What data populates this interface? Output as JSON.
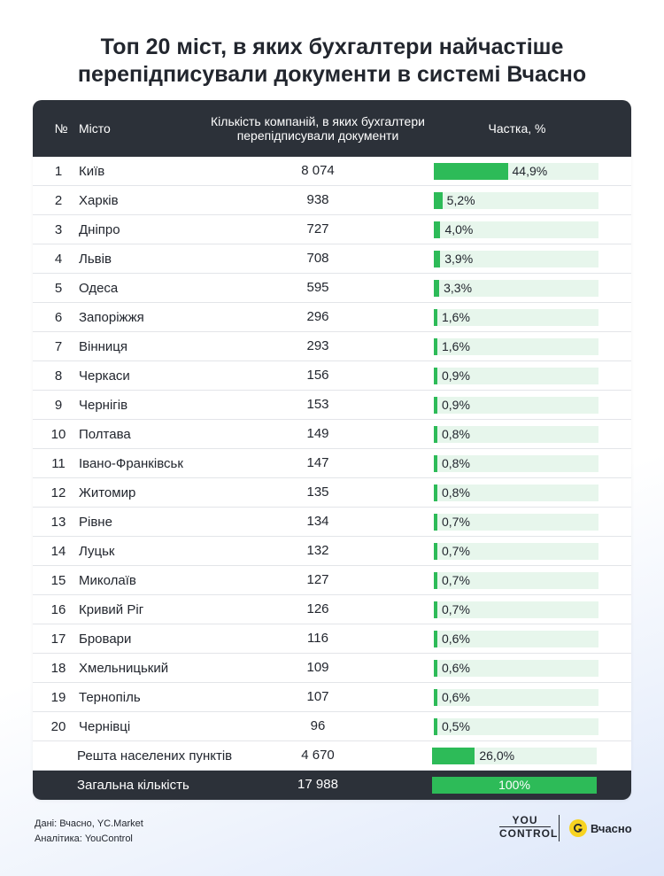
{
  "title": {
    "line1": "Топ 20 міст, в яких бухгалтери найчастіше",
    "line2": "перепідписували документи в системі Вчасно"
  },
  "table": {
    "headers": {
      "num": "№",
      "city": "Місто",
      "count": "Кількість компаній, в яких бухгалтери перепідписували документи",
      "share": "Частка, %"
    }
  },
  "chart_data": {
    "type": "table",
    "title": "Топ 20 міст, в яких бухгалтери найчастіше перепідписували документи в системі Вчасно",
    "columns": [
      "№",
      "Місто",
      "Кількість компаній, в яких бухгалтери перепідписували документи",
      "Частка, %"
    ],
    "rows": [
      {
        "num": "1",
        "city": "Київ",
        "count": "8 074",
        "share": 44.9,
        "share_label": "44,9%"
      },
      {
        "num": "2",
        "city": "Харків",
        "count": "938",
        "share": 5.2,
        "share_label": "5,2%"
      },
      {
        "num": "3",
        "city": "Дніпро",
        "count": "727",
        "share": 4.0,
        "share_label": "4,0%"
      },
      {
        "num": "4",
        "city": "Львів",
        "count": "708",
        "share": 3.9,
        "share_label": "3,9%"
      },
      {
        "num": "5",
        "city": "Одеса",
        "count": "595",
        "share": 3.3,
        "share_label": "3,3%"
      },
      {
        "num": "6",
        "city": "Запоріжжя",
        "count": "296",
        "share": 1.6,
        "share_label": "1,6%"
      },
      {
        "num": "7",
        "city": "Вінниця",
        "count": "293",
        "share": 1.6,
        "share_label": "1,6%"
      },
      {
        "num": "8",
        "city": "Черкаси",
        "count": "156",
        "share": 0.9,
        "share_label": "0,9%"
      },
      {
        "num": "9",
        "city": "Чернігів",
        "count": "153",
        "share": 0.9,
        "share_label": "0,9%"
      },
      {
        "num": "10",
        "city": "Полтава",
        "count": "149",
        "share": 0.8,
        "share_label": "0,8%"
      },
      {
        "num": "11",
        "city": "Івано-Франківськ",
        "count": "147",
        "share": 0.8,
        "share_label": "0,8%"
      },
      {
        "num": "12",
        "city": "Житомир",
        "count": "135",
        "share": 0.8,
        "share_label": "0,8%"
      },
      {
        "num": "13",
        "city": "Рівне",
        "count": "134",
        "share": 0.7,
        "share_label": "0,7%"
      },
      {
        "num": "14",
        "city": "Луцьк",
        "count": "132",
        "share": 0.7,
        "share_label": "0,7%"
      },
      {
        "num": "15",
        "city": "Миколаїв",
        "count": "127",
        "share": 0.7,
        "share_label": "0,7%"
      },
      {
        "num": "16",
        "city": "Кривий Ріг",
        "count": "126",
        "share": 0.7,
        "share_label": "0,7%"
      },
      {
        "num": "17",
        "city": "Бровари",
        "count": "116",
        "share": 0.6,
        "share_label": "0,6%"
      },
      {
        "num": "18",
        "city": "Хмельницький",
        "count": "109",
        "share": 0.6,
        "share_label": "0,6%"
      },
      {
        "num": "19",
        "city": "Тернопіль",
        "count": "107",
        "share": 0.6,
        "share_label": "0,6%"
      },
      {
        "num": "20",
        "city": "Чернівці",
        "count": "96",
        "share": 0.5,
        "share_label": "0,5%"
      }
    ],
    "rest": {
      "city": "Решта населених пунктів",
      "count": "4 670",
      "share": 26.0,
      "share_label": "26,0%"
    },
    "total": {
      "city": "Загальна кількість",
      "count": "17 988",
      "share": 100,
      "share_label": "100%"
    },
    "bar_scale_max": 100
  },
  "colors": {
    "header_bg": "#2c3139",
    "bar_fill": "#2dbb58",
    "bar_track": "#e7f6ec",
    "logo_yellow": "#f7d321"
  },
  "footer": {
    "source": "Дані: Вчасно, YC.Market",
    "analytics": "Аналітика: YouControl"
  },
  "logos": {
    "youcontrol_line1": "YOU",
    "youcontrol_line2": "CONTROL",
    "vchasno_text": "Вчасно",
    "vchasno_icon": "vchasno-logo-icon"
  }
}
